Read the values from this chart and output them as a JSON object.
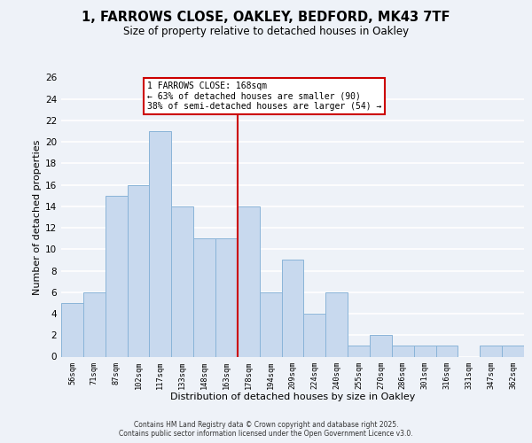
{
  "title": "1, FARROWS CLOSE, OAKLEY, BEDFORD, MK43 7TF",
  "subtitle": "Size of property relative to detached houses in Oakley",
  "xlabel": "Distribution of detached houses by size in Oakley",
  "ylabel": "Number of detached properties",
  "bin_labels": [
    "56sqm",
    "71sqm",
    "87sqm",
    "102sqm",
    "117sqm",
    "133sqm",
    "148sqm",
    "163sqm",
    "178sqm",
    "194sqm",
    "209sqm",
    "224sqm",
    "240sqm",
    "255sqm",
    "270sqm",
    "286sqm",
    "301sqm",
    "316sqm",
    "331sqm",
    "347sqm",
    "362sqm"
  ],
  "bar_values": [
    5,
    6,
    15,
    16,
    21,
    14,
    11,
    11,
    14,
    6,
    9,
    4,
    6,
    1,
    2,
    1,
    1,
    1,
    0,
    1,
    1
  ],
  "bar_color": "#c8d9ee",
  "bar_edge_color": "#8ab4d8",
  "vline_x": 7.5,
  "vline_color": "#cc0000",
  "annotation_title": "1 FARROWS CLOSE: 168sqm",
  "annotation_line1": "← 63% of detached houses are smaller (90)",
  "annotation_line2": "38% of semi-detached houses are larger (54) →",
  "annotation_box_color": "#ffffff",
  "annotation_box_edge": "#cc0000",
  "ylim": [
    0,
    26
  ],
  "yticks": [
    0,
    2,
    4,
    6,
    8,
    10,
    12,
    14,
    16,
    18,
    20,
    22,
    24,
    26
  ],
  "footer1": "Contains HM Land Registry data © Crown copyright and database right 2025.",
  "footer2": "Contains public sector information licensed under the Open Government Licence v3.0.",
  "bg_color": "#eef2f8",
  "grid_color": "#ffffff",
  "title_fontsize": 10.5,
  "subtitle_fontsize": 8.5
}
